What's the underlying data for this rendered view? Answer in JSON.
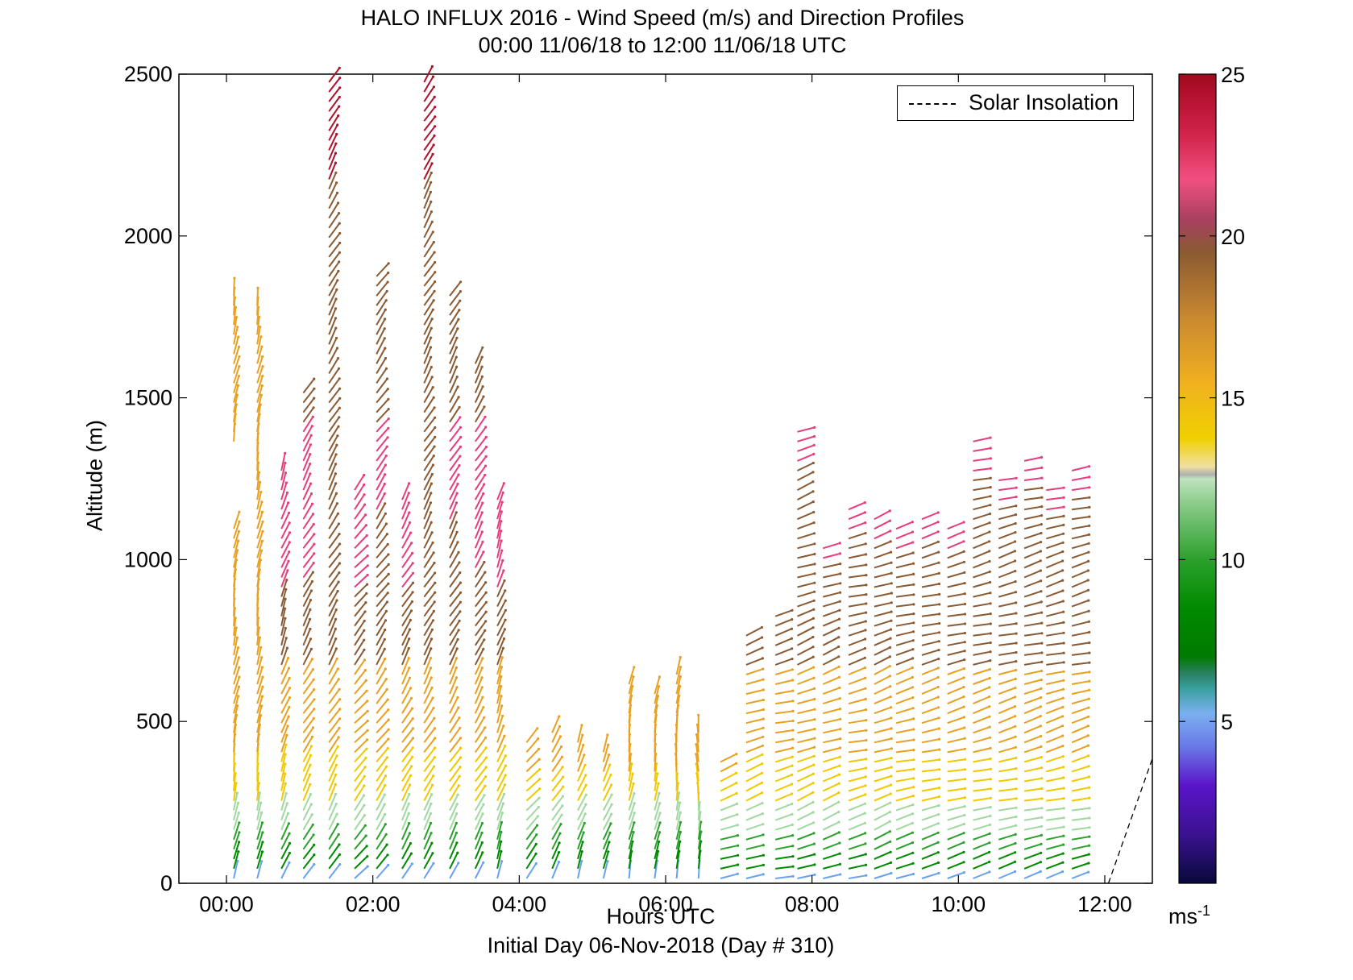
{
  "title_line1": "HALO INFLUX 2016 - Wind Speed (m/s) and Direction Profiles",
  "title_line2": "00:00 11/06/18 to 12:00 11/06/18  UTC",
  "xlabel": "Hours UTC",
  "ylabel": "Altitude (m)",
  "subtitle": "Initial Day 06-Nov-2018 (Day # 310)",
  "legend_label": "Solar Insolation",
  "colorbar_unit": "ms",
  "colorbar_unit_sup": "-1",
  "chart_data": {
    "type": "wind-barb-profile",
    "title": "HALO INFLUX 2016 - Wind Speed (m/s) and Direction Profiles",
    "xlabel": "Hours UTC",
    "ylabel": "Altitude (m)",
    "xlim": [
      -0.65,
      12.65
    ],
    "ylim": [
      0,
      2500
    ],
    "x_ticks": [
      0,
      2,
      4,
      6,
      8,
      10,
      12
    ],
    "x_tick_labels": [
      "00:00",
      "02:00",
      "04:00",
      "06:00",
      "08:00",
      "10:00",
      "12:00"
    ],
    "y_ticks": [
      0,
      500,
      1000,
      1500,
      2000,
      2500
    ],
    "colorbar": {
      "min": 0,
      "max": 25,
      "ticks": [
        5,
        10,
        15,
        20,
        25
      ],
      "unit": "ms-1"
    },
    "colors": {
      "low": "#0a0a4a",
      "violet": "#5a14c8",
      "blue": "#6aa0f0",
      "teal": "#3aa0a0",
      "darkgreen": "#008a00",
      "green": "#2ca02c",
      "lightgreen": "#a0d8a0",
      "yellow": "#f0c800",
      "orange": "#e8a020",
      "brown": "#8a5a32",
      "pink": "#e83c7c",
      "red": "#b0102a"
    },
    "solar_insolation": {
      "x": [
        12.05,
        12.65
      ],
      "y": [
        0,
        385
      ],
      "style": "dashed"
    },
    "profiles": [
      {
        "t": 0.1,
        "top": 1830,
        "dir": 190,
        "gap": [
          1100,
          1360
        ]
      },
      {
        "t": 0.42,
        "top": 1800,
        "dir": 190
      },
      {
        "t": 0.75,
        "top": 1280,
        "dir": 200
      },
      {
        "t": 1.05,
        "top": 1530,
        "dir": 210
      },
      {
        "t": 1.4,
        "top": 2480,
        "dir": 210
      },
      {
        "t": 1.75,
        "top": 1240,
        "dir": 220
      },
      {
        "t": 2.05,
        "top": 1880,
        "dir": 215
      },
      {
        "t": 2.4,
        "top": 1200,
        "dir": 210
      },
      {
        "t": 2.7,
        "top": 2480,
        "dir": 210
      },
      {
        "t": 3.05,
        "top": 1830,
        "dir": 210
      },
      {
        "t": 3.4,
        "top": 1610,
        "dir": 210
      },
      {
        "t": 3.7,
        "top": 1200,
        "dir": 200
      },
      {
        "t": 4.1,
        "top": 460,
        "dir": 220
      },
      {
        "t": 4.45,
        "top": 490,
        "dir": 210
      },
      {
        "t": 4.8,
        "top": 450,
        "dir": 200
      },
      {
        "t": 5.15,
        "top": 420,
        "dir": 200
      },
      {
        "t": 5.5,
        "top": 620,
        "dir": 190
      },
      {
        "t": 5.85,
        "top": 590,
        "dir": 190
      },
      {
        "t": 6.15,
        "top": 660,
        "dir": 185
      },
      {
        "t": 6.45,
        "top": 490,
        "dir": 180
      },
      {
        "t": 6.75,
        "top": 375,
        "dir": 250
      },
      {
        "t": 7.1,
        "top": 770,
        "dir": 250
      },
      {
        "t": 7.5,
        "top": 840,
        "dir": 255
      },
      {
        "t": 7.8,
        "top": 1400,
        "dir": 250
      },
      {
        "t": 8.15,
        "top": 1040,
        "dir": 250
      },
      {
        "t": 8.5,
        "top": 1170,
        "dir": 255
      },
      {
        "t": 8.85,
        "top": 1130,
        "dir": 250
      },
      {
        "t": 9.15,
        "top": 1100,
        "dir": 255
      },
      {
        "t": 9.5,
        "top": 1130,
        "dir": 255
      },
      {
        "t": 9.85,
        "top": 1100,
        "dir": 255
      },
      {
        "t": 10.2,
        "top": 1370,
        "dir": 255
      },
      {
        "t": 10.55,
        "top": 1250,
        "dir": 255
      },
      {
        "t": 10.9,
        "top": 1320,
        "dir": 255
      },
      {
        "t": 11.2,
        "top": 1220,
        "dir": 255
      },
      {
        "t": 11.55,
        "top": 1290,
        "dir": 255
      }
    ]
  }
}
